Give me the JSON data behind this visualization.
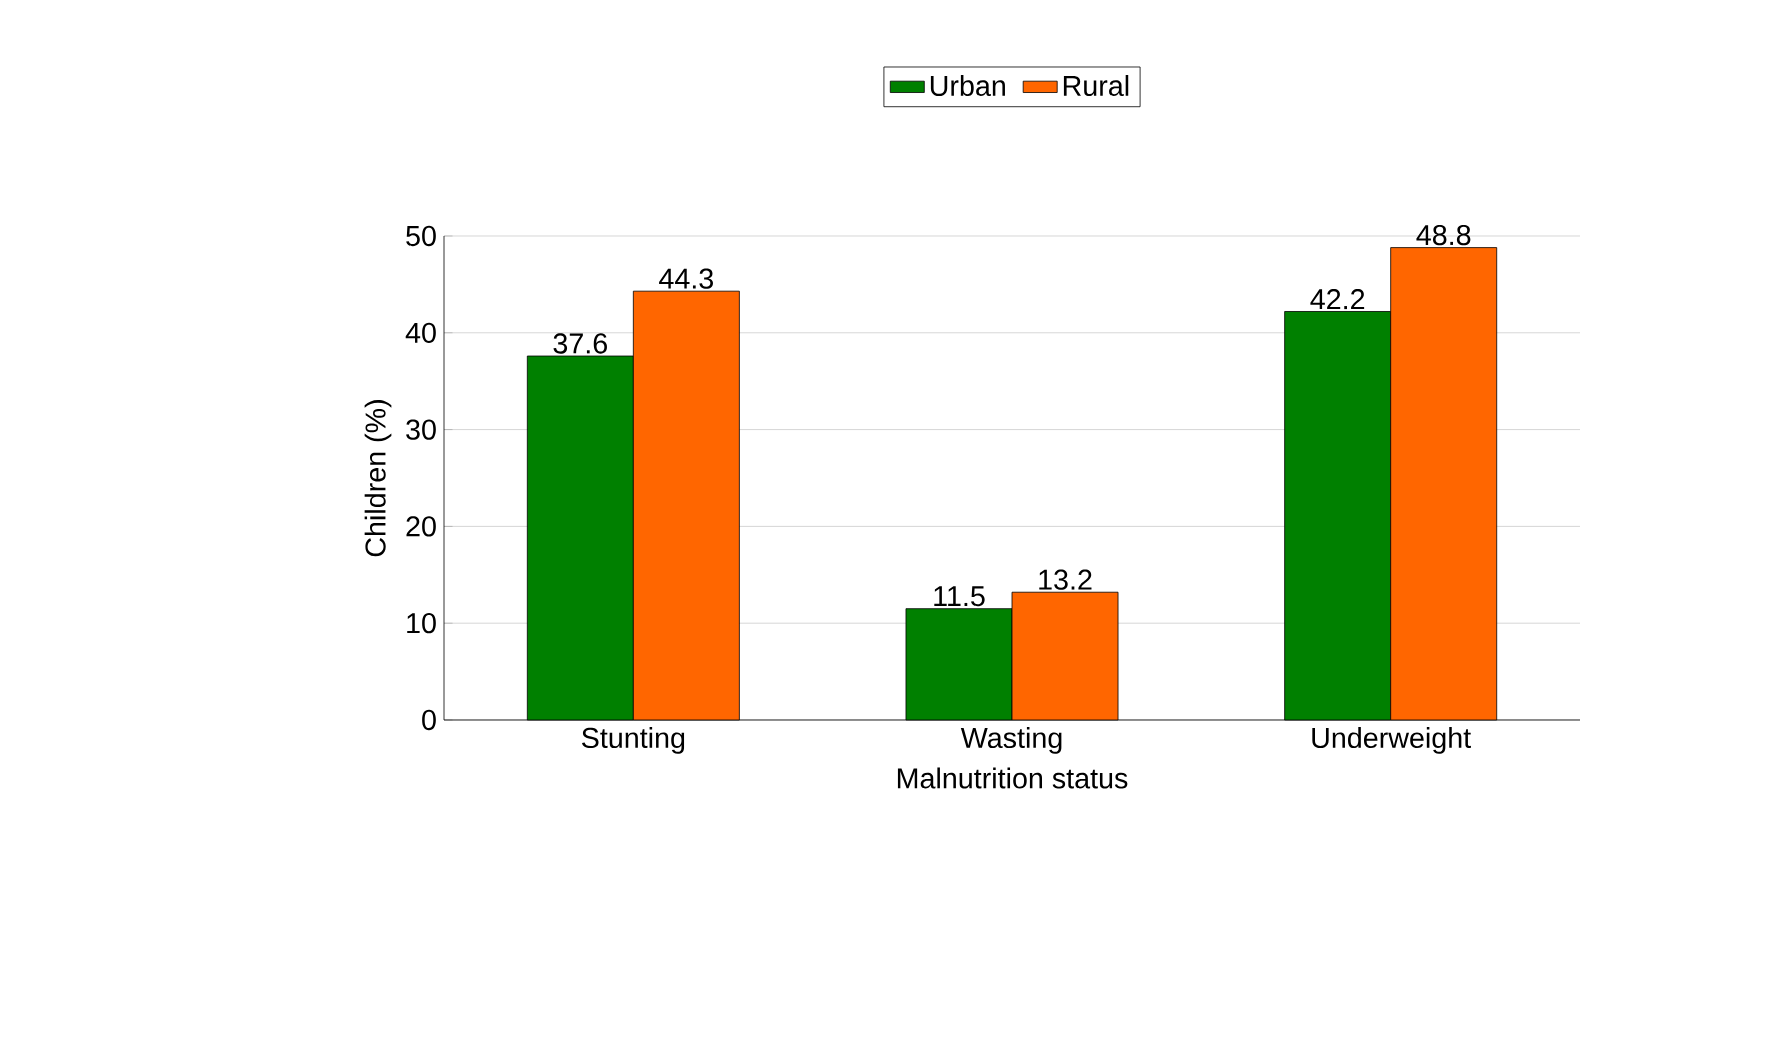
{
  "chart_data": {
    "type": "bar",
    "xlabel": "Malnutrition status",
    "ylabel": "Children (%)",
    "categories": [
      "Stunting",
      "Wasting",
      "Underweight"
    ],
    "series": [
      {
        "name": "Urban",
        "color": "#008000",
        "values": [
          37.6,
          11.5,
          42.2
        ]
      },
      {
        "name": "Rural",
        "color": "#ff6600",
        "values": [
          44.3,
          13.2,
          48.8
        ]
      }
    ],
    "ylim": [
      0,
      50
    ],
    "yticks": [
      0,
      10,
      20,
      30,
      40,
      50
    ],
    "grid": "y",
    "legend": "top",
    "data_labels": true
  }
}
